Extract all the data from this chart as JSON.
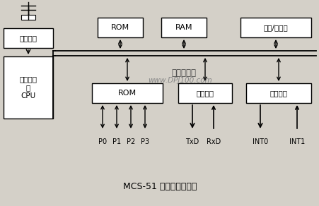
{
  "title": "MCS-51 单片机结构框图",
  "bg_color": "#d4d0c8",
  "box_color": "#ffffff",
  "line_color": "#000000",
  "watermark1": "单片机之家",
  "watermark2": "www.DPJ100.com",
  "figsize": [
    4.52,
    2.92
  ],
  "dpi": 100
}
